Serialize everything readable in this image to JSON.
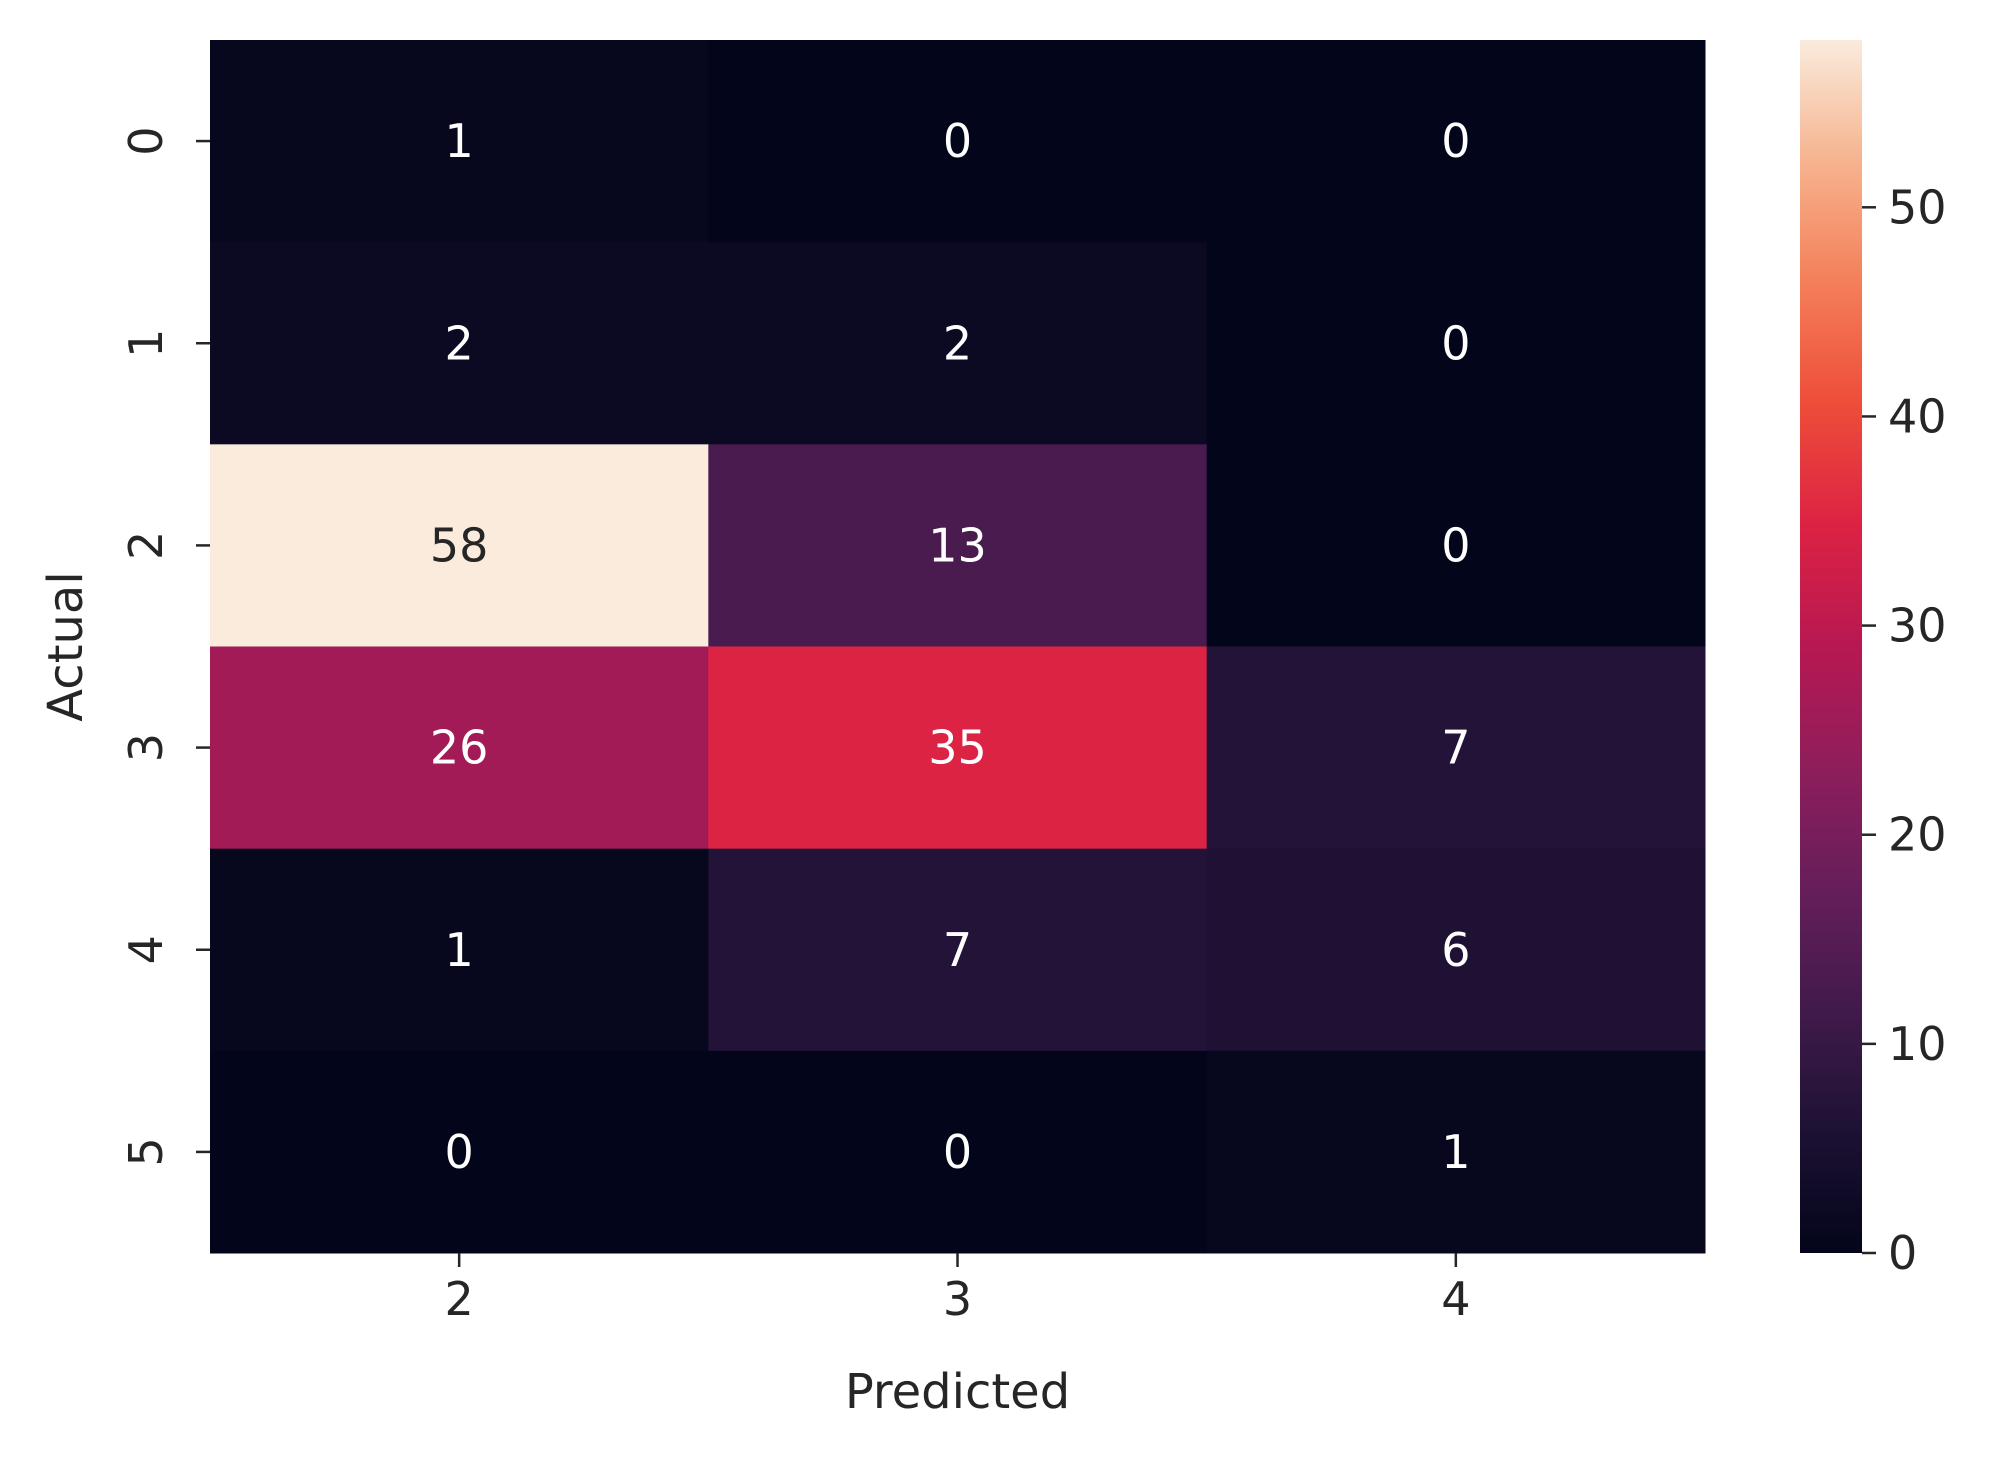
{
  "chart_data": {
    "type": "heatmap",
    "title": "",
    "xlabel": "Predicted",
    "ylabel": "Actual",
    "x_categories": [
      "2",
      "3",
      "4"
    ],
    "y_categories": [
      "0",
      "1",
      "2",
      "3",
      "4",
      "5"
    ],
    "values": [
      [
        1,
        0,
        0
      ],
      [
        2,
        2,
        0
      ],
      [
        58,
        13,
        0
      ],
      [
        26,
        35,
        7
      ],
      [
        1,
        7,
        6
      ],
      [
        0,
        0,
        1
      ]
    ],
    "colorbar": {
      "min": 0,
      "max": 58,
      "ticks": [
        0,
        10,
        20,
        30,
        40,
        50
      ],
      "colormap": "rocket"
    },
    "annotate": true,
    "grid": false
  }
}
